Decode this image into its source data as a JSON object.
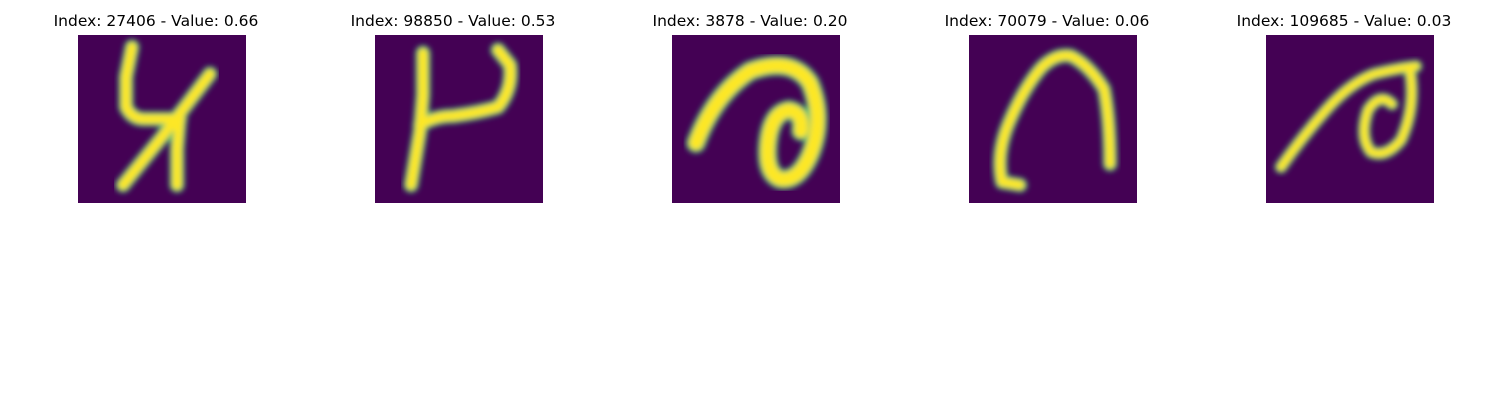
{
  "panels": [
    {
      "title": "Index: 27406 - Value: 0.66",
      "glyph": "glyph-4-x-shape"
    },
    {
      "title": "Index: 98850 - Value: 0.53",
      "glyph": "glyph-y-shape"
    },
    {
      "title": "Index: 3878 - Value: 0.20",
      "glyph": "glyph-loop-shape"
    },
    {
      "title": "Index: 70079 - Value: 0.06",
      "glyph": "glyph-arch-shape"
    },
    {
      "title": "Index: 109685 - Value: 0.03",
      "glyph": "glyph-small-loop-shape"
    }
  ],
  "colors": {
    "background": "#440154",
    "stroke_core": "#fde725",
    "stroke_edge": "#35b779"
  }
}
